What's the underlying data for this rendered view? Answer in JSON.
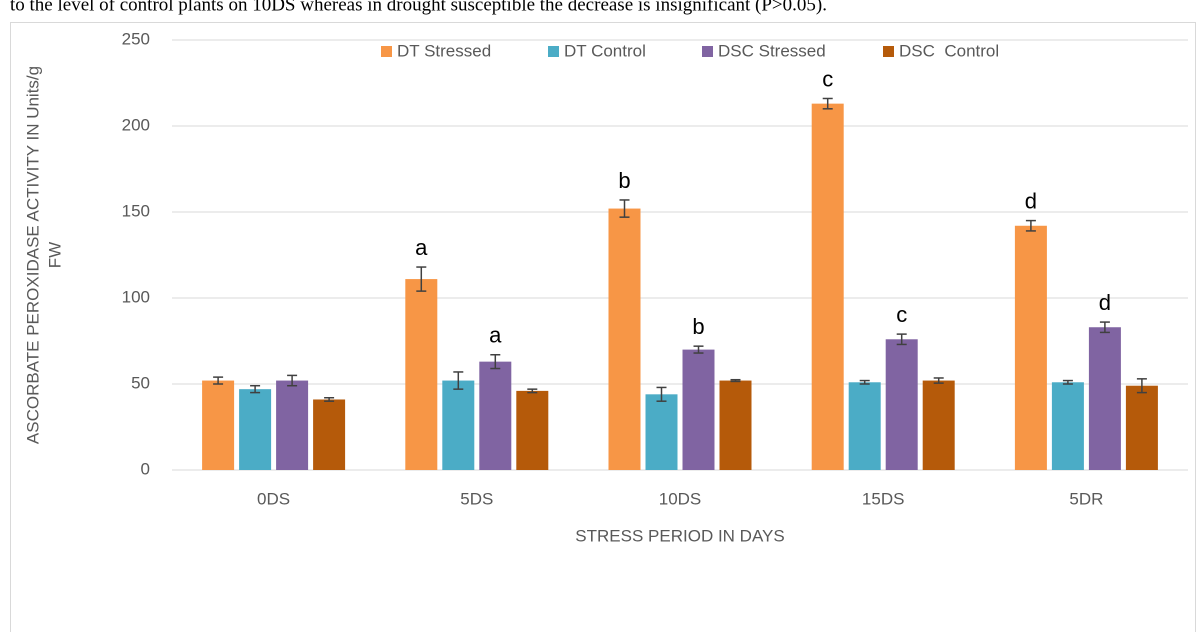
{
  "document": {
    "text": "to the level of control plants on 10DS whereas in drought susceptible the decrease is insignificant (P>0.05)."
  },
  "chart_data": {
    "type": "bar",
    "y_label": [
      "ASCORBATE PEROXIDASE ACTIVITY IN Units/g",
      "FW"
    ],
    "x_label": "STRESS PERIOD IN DAYS",
    "categories": [
      "0DS",
      "5DS",
      "10DS",
      "15DS",
      "5DR"
    ],
    "series": [
      {
        "name": "DT Stressed",
        "color": "#f79646",
        "values": [
          52,
          111,
          152,
          213,
          142
        ],
        "errors": [
          2,
          7,
          5,
          3,
          3
        ],
        "labels": [
          null,
          "a",
          "b",
          "c",
          "d"
        ]
      },
      {
        "name": "DT Control",
        "color": "#4bacc6",
        "values": [
          47,
          52,
          44,
          51,
          51
        ],
        "errors": [
          2,
          5,
          4,
          1,
          1
        ]
      },
      {
        "name": "DSC Stressed",
        "color": "#8064a2",
        "values": [
          52,
          63,
          70,
          76,
          83
        ],
        "errors": [
          3,
          4,
          2,
          3,
          3
        ],
        "labels": [
          null,
          "a",
          "b",
          "c",
          "d"
        ]
      },
      {
        "name": "DSC  Control",
        "color": "#b55a0a",
        "values": [
          41,
          46,
          52,
          52,
          49
        ],
        "errors": [
          1,
          1,
          0.5,
          1.5,
          4
        ]
      }
    ],
    "ylim": [
      0,
      250
    ],
    "yticks": [
      0,
      50,
      100,
      150,
      200,
      250
    ],
    "grid": true,
    "legend": "top"
  }
}
